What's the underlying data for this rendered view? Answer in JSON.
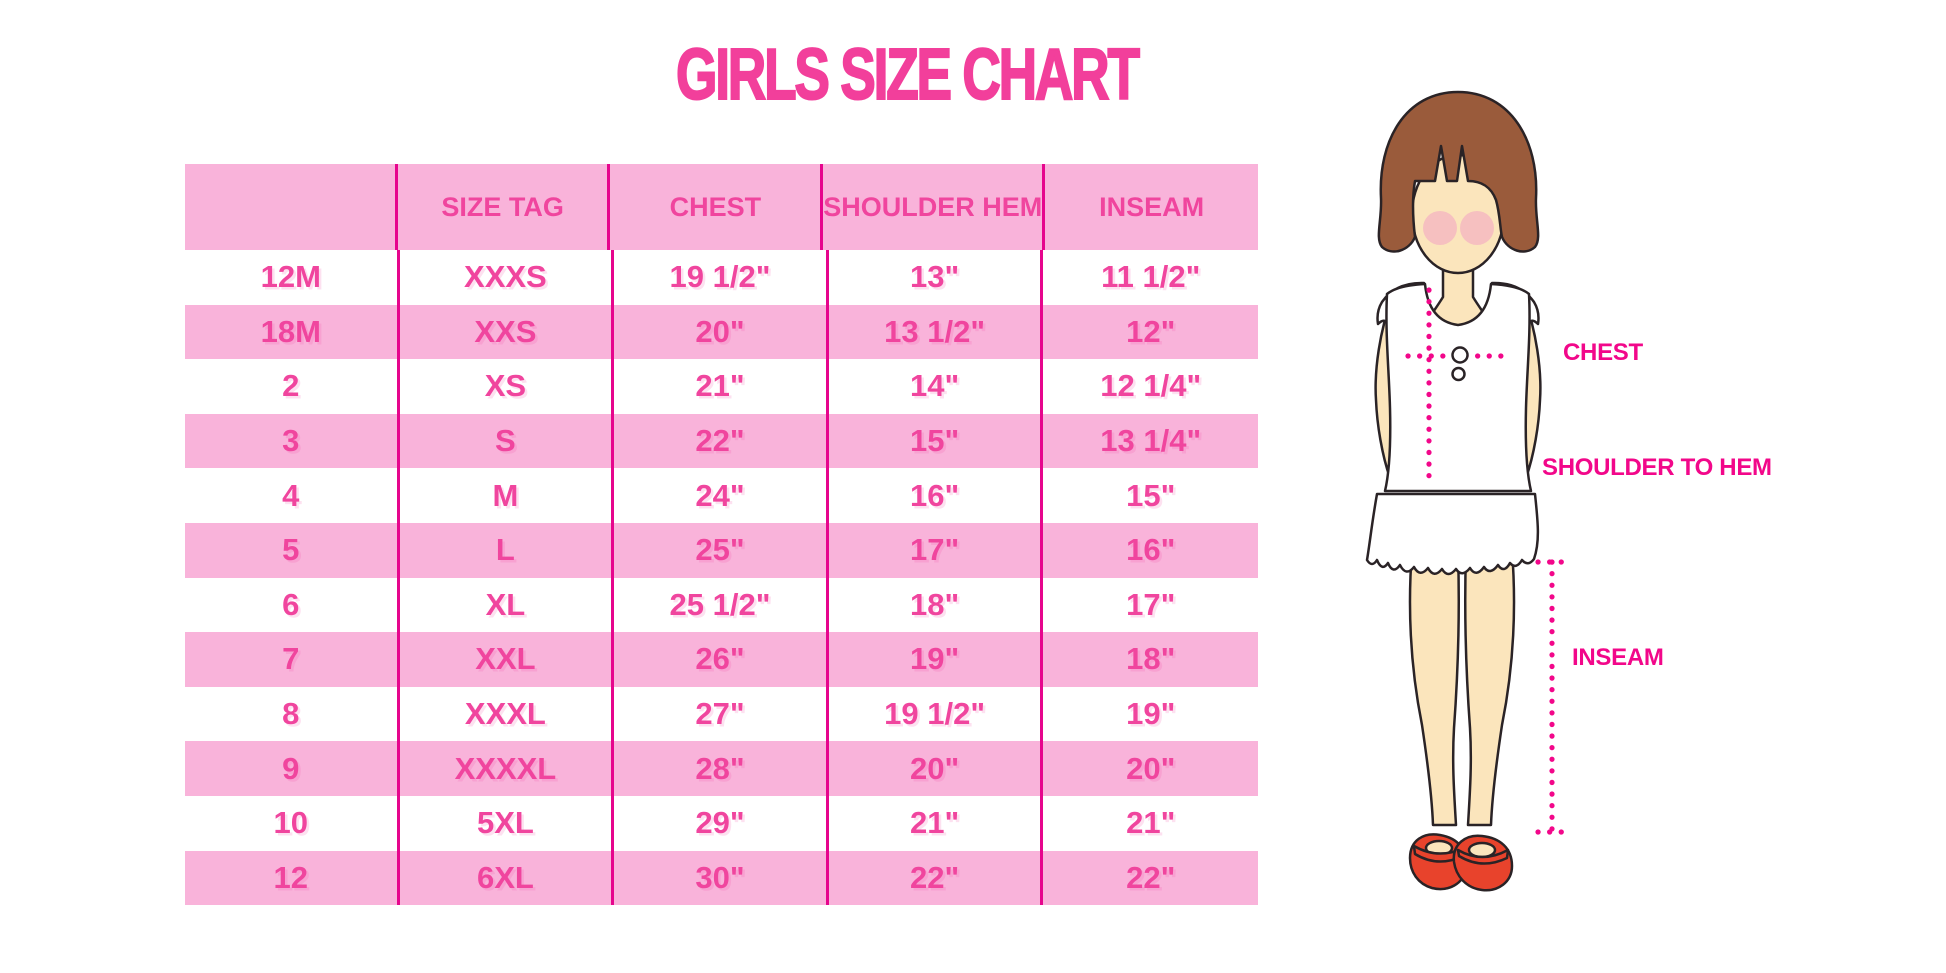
{
  "title": "GIRLS SIZE CHART",
  "chart_data": {
    "type": "table",
    "title": "GIRLS SIZE CHART",
    "columns": [
      "",
      "SIZE TAG",
      "CHEST",
      "SHOULDER HEM",
      "INSEAM"
    ],
    "rows": [
      [
        "12M",
        "XXXS",
        "19 1/2\"",
        "13\"",
        "11 1/2\""
      ],
      [
        "18M",
        "XXS",
        "20\"",
        "13 1/2\"",
        "12\""
      ],
      [
        "2",
        "XS",
        "21\"",
        "14\"",
        "12 1/4\""
      ],
      [
        "3",
        "S",
        "22\"",
        "15\"",
        "13 1/4\""
      ],
      [
        "4",
        "M",
        "24\"",
        "16\"",
        "15\""
      ],
      [
        "5",
        "L",
        "25\"",
        "17\"",
        "16\""
      ],
      [
        "6",
        "XL",
        "25 1/2\"",
        "18\"",
        "17\""
      ],
      [
        "7",
        "XXL",
        "26\"",
        "19\"",
        "18\""
      ],
      [
        "8",
        "XXXL",
        "27\"",
        "19 1/2\"",
        "19\""
      ],
      [
        "9",
        "XXXXL",
        "28\"",
        "20\"",
        "20\""
      ],
      [
        "10",
        "5XL",
        "29\"",
        "21\"",
        "21\""
      ],
      [
        "12",
        "6XL",
        "30\"",
        "22\"",
        "22\""
      ]
    ],
    "stripe_pattern": "header pink, then rows alternate white/pink starting with white",
    "legend_position": "none",
    "grid": "vertical magenta column rules only"
  },
  "figure": {
    "description": "cartoon girl with brown bob hair, white sleeveless ruffled dress, red mary-jane shoes, magenta dotted measurement guides",
    "labels": {
      "chest": "CHEST",
      "shoulder_to_hem": "SHOULDER TO HEM",
      "inseam": "INSEAM"
    }
  },
  "colors": {
    "background": "#FFFFFF",
    "title_pink": "#F23F9B",
    "table_stripe_pink": "#F9B3DA",
    "table_text_pink": "#F0459E",
    "grid_line_magenta": "#E6058D",
    "measure_magenta": "#F2078A",
    "hair_brown": "#9A5B3B",
    "skin_tone": "#FBE5BC",
    "blush_pink": "#F4B3C2",
    "shoe_red": "#E8432C",
    "outline_dark": "#2A2326"
  }
}
